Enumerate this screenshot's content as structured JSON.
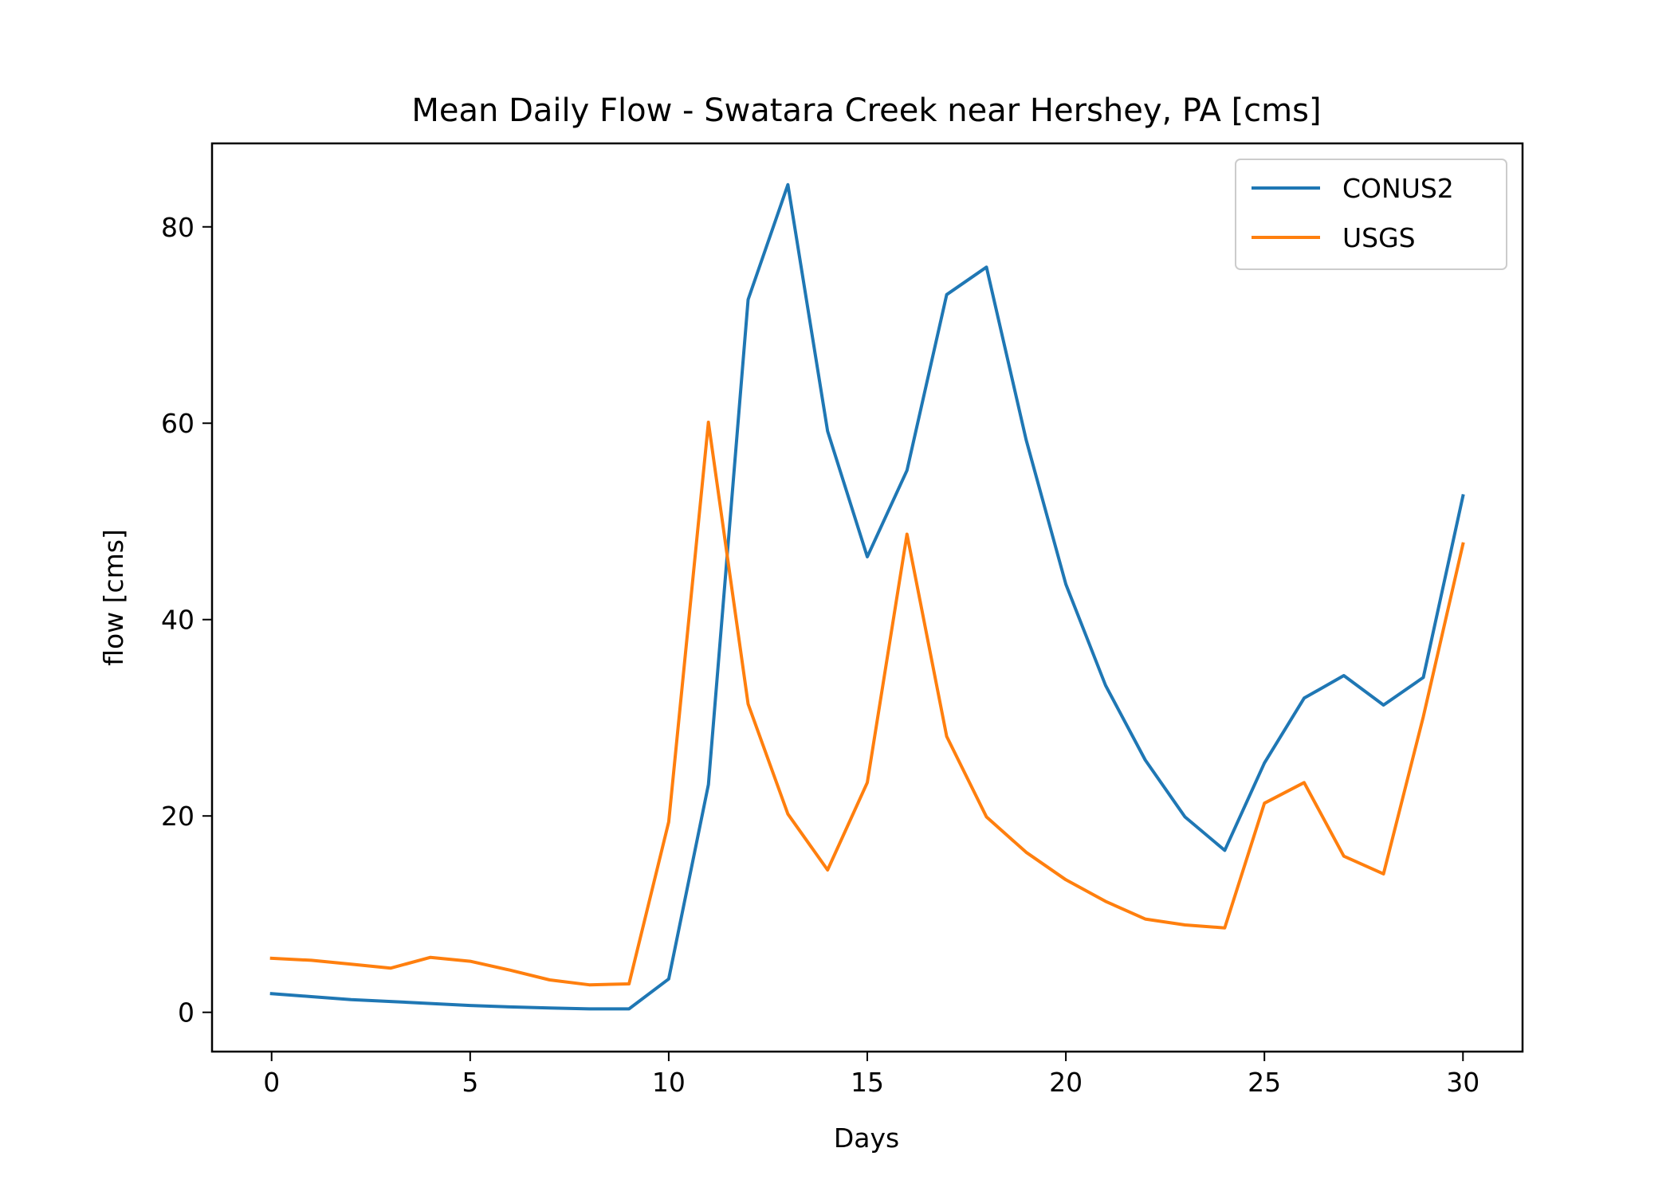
{
  "chart_data": {
    "type": "line",
    "title": "Mean Daily Flow - Swatara Creek near Hershey, PA [cms]",
    "xlabel": "Days",
    "ylabel": "flow [cms]",
    "xlim": [
      -1.5,
      31.5
    ],
    "ylim": [
      -4,
      88.5
    ],
    "xticks": [
      0,
      5,
      10,
      15,
      20,
      25,
      30
    ],
    "yticks": [
      0,
      20,
      40,
      60,
      80
    ],
    "grid": false,
    "legend_position": "top-right",
    "x": [
      0,
      1,
      2,
      3,
      4,
      5,
      6,
      7,
      8,
      9,
      10,
      11,
      12,
      13,
      14,
      15,
      16,
      17,
      18,
      19,
      20,
      21,
      22,
      23,
      24,
      25,
      26,
      27,
      28,
      29,
      30
    ],
    "series": [
      {
        "name": "CONUS2",
        "color": "#1f77b4",
        "values": [
          1.9,
          1.6,
          1.3,
          1.1,
          0.9,
          0.7,
          0.55,
          0.45,
          0.35,
          0.35,
          3.4,
          23.2,
          72.6,
          84.3,
          59.2,
          46.4,
          55.2,
          73.1,
          75.9,
          58.3,
          43.6,
          33.3,
          25.7,
          19.9,
          16.5,
          25.4,
          32.0,
          34.3,
          31.3,
          34.1,
          52.6
        ]
      },
      {
        "name": "USGS",
        "color": "#ff7f0e",
        "values": [
          5.5,
          5.3,
          4.9,
          4.5,
          5.6,
          5.2,
          4.3,
          3.3,
          2.8,
          2.9,
          19.4,
          60.1,
          31.4,
          20.2,
          14.5,
          23.4,
          48.7,
          28.1,
          19.9,
          16.3,
          13.5,
          11.3,
          9.5,
          8.9,
          8.6,
          21.3,
          23.4,
          15.9,
          14.1,
          30.1,
          47.7
        ]
      }
    ]
  }
}
